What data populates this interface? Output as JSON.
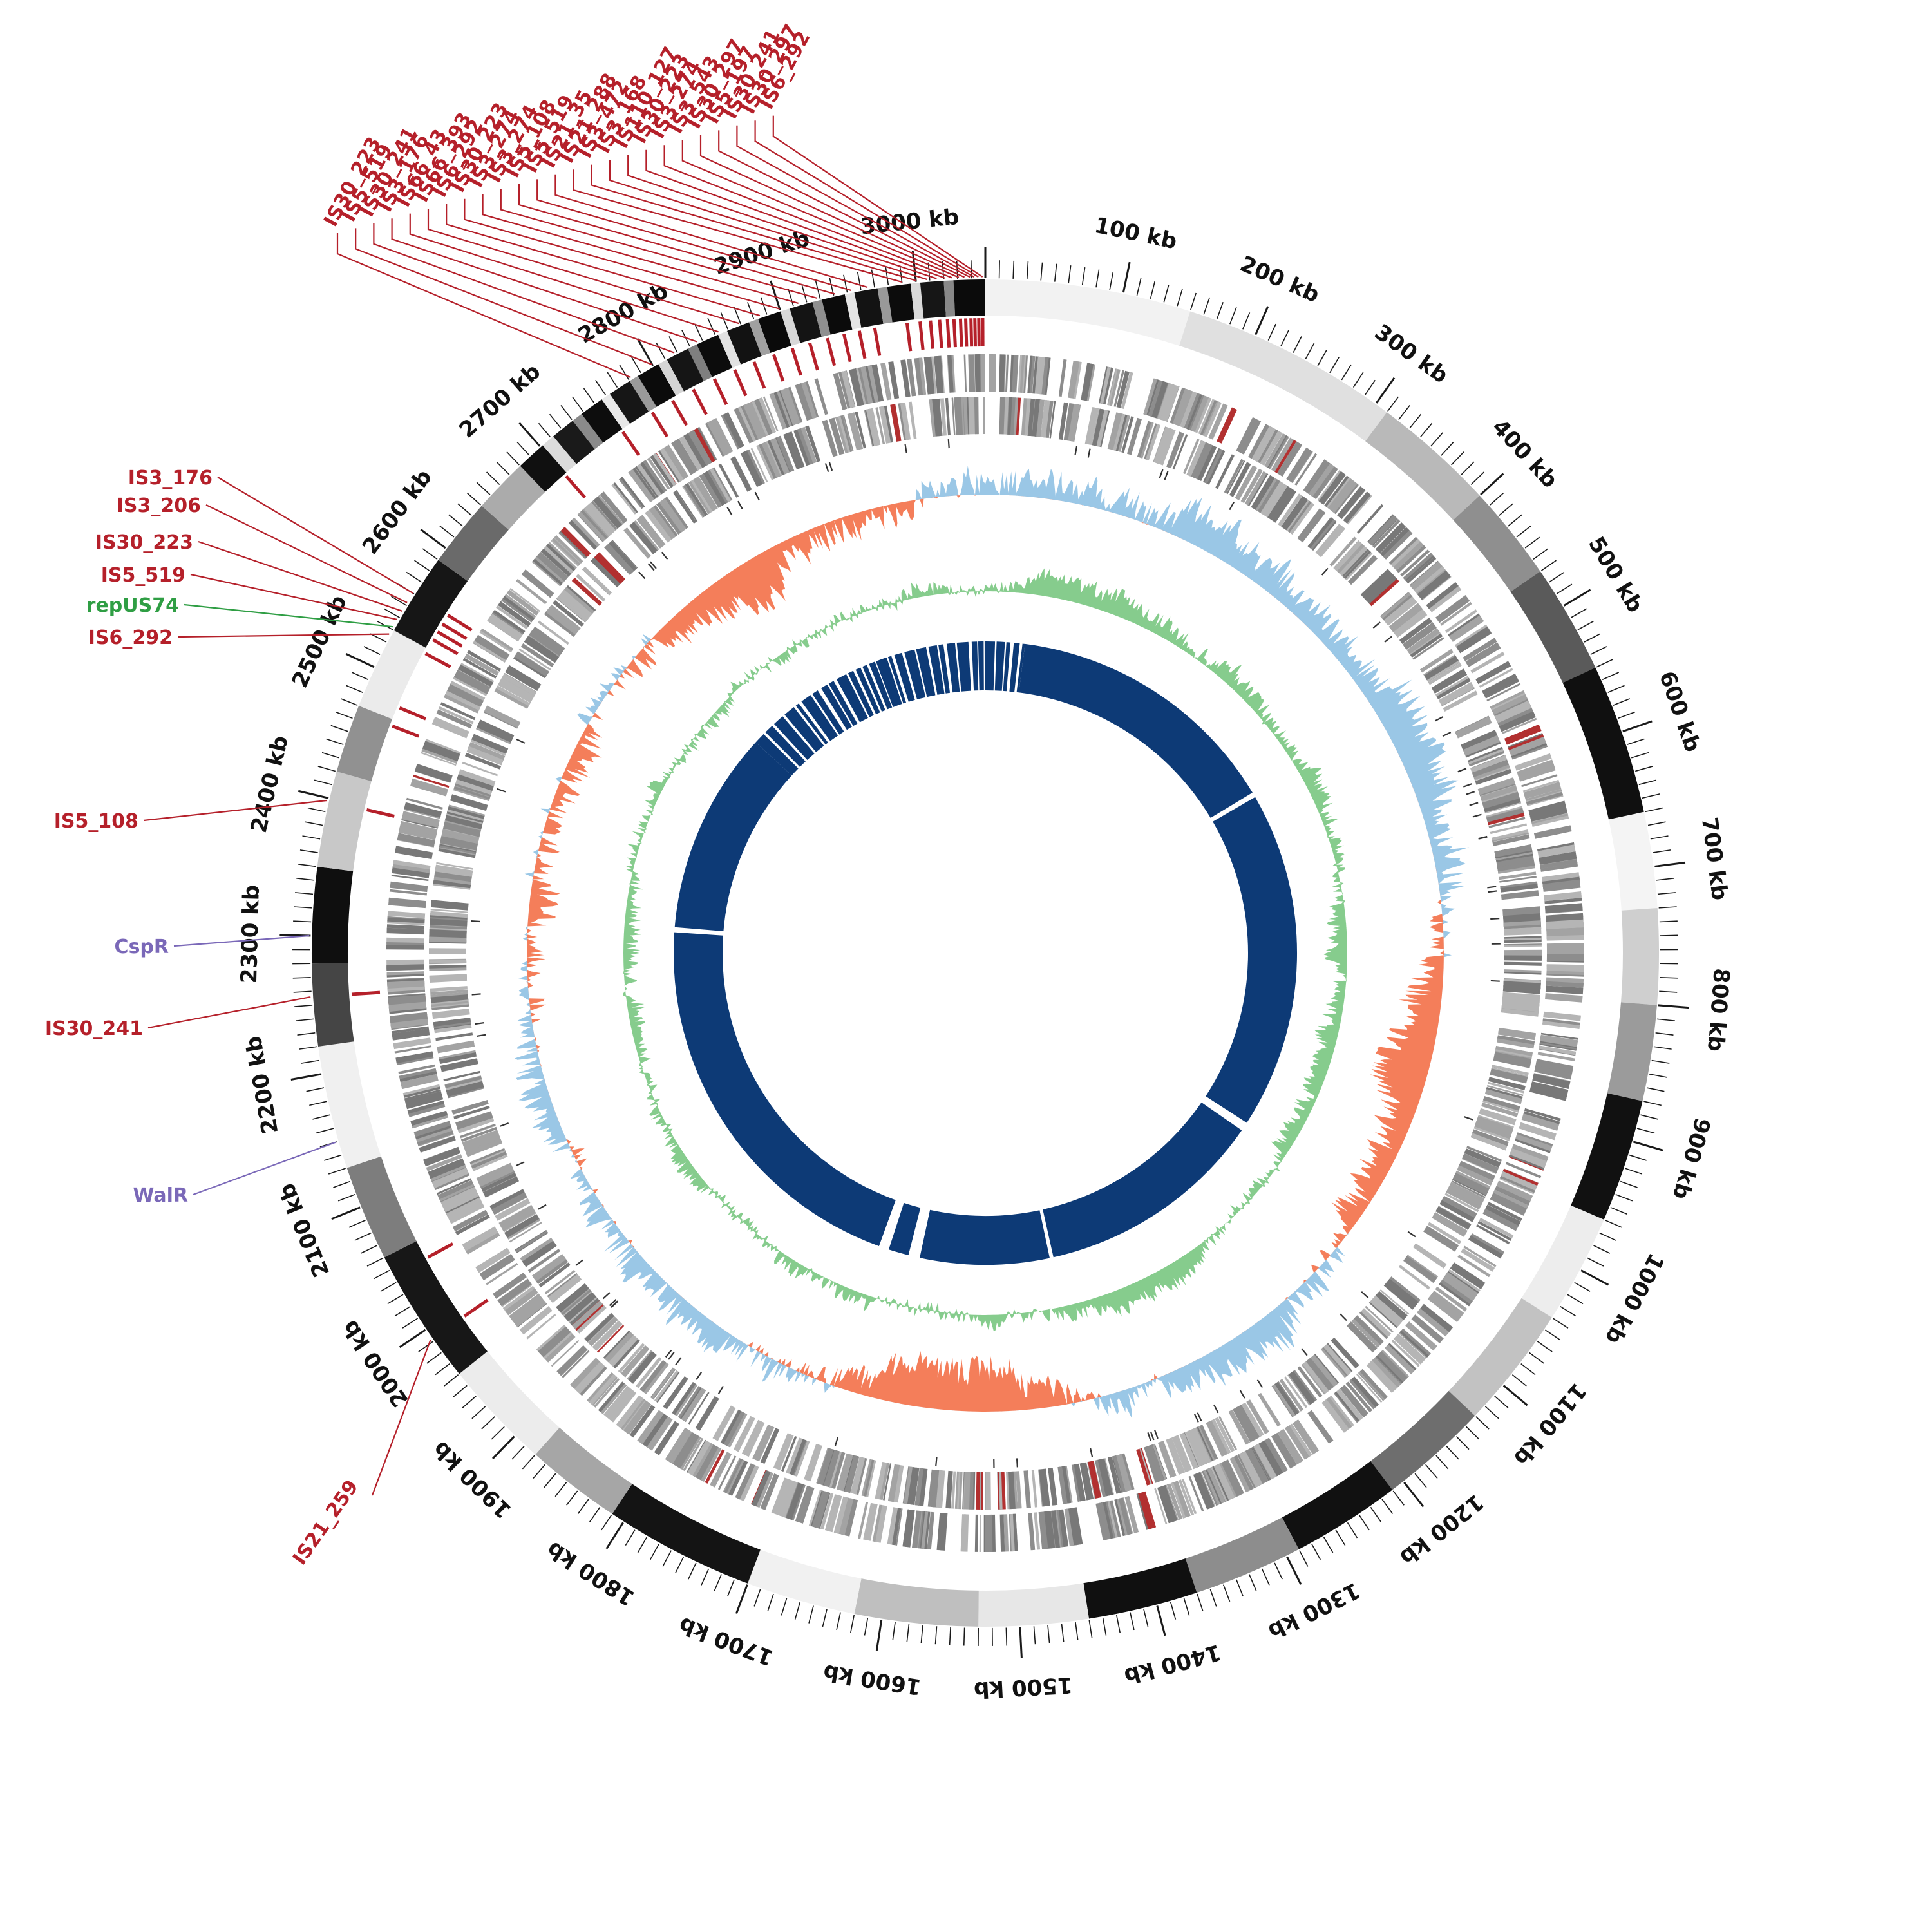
{
  "figure": {
    "background": "#ffffff",
    "description": "Circular genome map (circos-style) with karyotype ring, IS element annotations, gene tracks, GC plots and core-genome inner ring"
  },
  "chart_data": {
    "type": "circos-genome-map",
    "genome_length_kb": 3050,
    "axis": {
      "label_interval_kb": 100,
      "minor_tick_kb": 10,
      "labels": [
        "100 kb",
        "200 kb",
        "300 kb",
        "400 kb",
        "500 kb",
        "600 kb",
        "700 kb",
        "800 kb",
        "900 kb",
        "1000 kb",
        "1100 kb",
        "1200 kb",
        "1300 kb",
        "1400 kb",
        "1500 kb",
        "1600 kb",
        "1700 kb",
        "1800 kb",
        "1900 kb",
        "2000 kb",
        "2100 kb",
        "2200 kb",
        "2300 kb",
        "2400 kb",
        "2500 kb",
        "2600 kb",
        "2700 kb",
        "2800 kb",
        "2900 kb",
        "3000 kb"
      ]
    },
    "colors": {
      "red": "#b5202a",
      "purple": "#7a68b8",
      "green": "#2f9e44",
      "navy": "#0d3a76",
      "gc_positive": "#9ac7e6",
      "gc_negative": "#f47e5a",
      "skew_green": "#86cc8d",
      "tick": "#1a1a1a",
      "label_text": "#111111"
    },
    "karyotype_segments": [
      [
        0,
        150,
        "#f2f2f2"
      ],
      [
        150,
        310,
        "#e0e0e0"
      ],
      [
        310,
        400,
        "#b9b9b9"
      ],
      [
        400,
        470,
        "#8f8f8f"
      ],
      [
        470,
        550,
        "#5a5a5a"
      ],
      [
        550,
        660,
        "#101010"
      ],
      [
        660,
        730,
        "#f4f4f4"
      ],
      [
        730,
        800,
        "#cfcfcf"
      ],
      [
        800,
        870,
        "#9b9b9b"
      ],
      [
        870,
        960,
        "#111111"
      ],
      [
        960,
        1040,
        "#ededed"
      ],
      [
        1040,
        1130,
        "#c2c2c2"
      ],
      [
        1130,
        1210,
        "#6e6e6e"
      ],
      [
        1210,
        1290,
        "#111111"
      ],
      [
        1290,
        1370,
        "#8d8d8d"
      ],
      [
        1370,
        1450,
        "#101010"
      ],
      [
        1450,
        1530,
        "#e7e7e7"
      ],
      [
        1530,
        1620,
        "#bfbfbf"
      ],
      [
        1620,
        1700,
        "#f1f1f1"
      ],
      [
        1700,
        1810,
        "#141414"
      ],
      [
        1810,
        1880,
        "#a6a6a6"
      ],
      [
        1880,
        1960,
        "#ececec"
      ],
      [
        1960,
        2060,
        "#171717"
      ],
      [
        2060,
        2130,
        "#7d7d7d"
      ],
      [
        2130,
        2220,
        "#f0f0f0"
      ],
      [
        2220,
        2280,
        "#454545"
      ],
      [
        2280,
        2350,
        "#0f0f0f"
      ],
      [
        2350,
        2420,
        "#c8c8c8"
      ],
      [
        2420,
        2470,
        "#919191"
      ],
      [
        2470,
        2530,
        "#ebebeb"
      ],
      [
        2530,
        2590,
        "#161616"
      ],
      [
        2590,
        2640,
        "#6a6a6a"
      ],
      [
        2640,
        2680,
        "#ababab"
      ],
      [
        2680,
        2702,
        "#101010"
      ],
      [
        2702,
        2712,
        "#dcdcdc"
      ],
      [
        2712,
        2730,
        "#1a1a1a"
      ],
      [
        2730,
        2738,
        "#8a8a8a"
      ],
      [
        2738,
        2756,
        "#0d0d0d"
      ],
      [
        2756,
        2763,
        "#e8e8e8"
      ],
      [
        2763,
        2780,
        "#161616"
      ],
      [
        2780,
        2787,
        "#9a9a9a"
      ],
      [
        2787,
        2804,
        "#0b0b0b"
      ],
      [
        2804,
        2811,
        "#d5d5d5"
      ],
      [
        2811,
        2828,
        "#151515"
      ],
      [
        2828,
        2835,
        "#7f7f7f"
      ],
      [
        2835,
        2852,
        "#0c0c0c"
      ],
      [
        2852,
        2859,
        "#e2e2e2"
      ],
      [
        2859,
        2876,
        "#121212"
      ],
      [
        2876,
        2883,
        "#a0a0a0"
      ],
      [
        2883,
        2900,
        "#0a0a0a"
      ],
      [
        2900,
        2907,
        "#d8d8d8"
      ],
      [
        2907,
        2924,
        "#141414"
      ],
      [
        2924,
        2931,
        "#8f8f8f"
      ],
      [
        2931,
        2948,
        "#0b0b0b"
      ],
      [
        2948,
        2955,
        "#e5e5e5"
      ],
      [
        2955,
        2972,
        "#131313"
      ],
      [
        2972,
        2979,
        "#999999"
      ],
      [
        2979,
        2996,
        "#0c0c0c"
      ],
      [
        2996,
        3003,
        "#dadada"
      ],
      [
        3003,
        3020,
        "#161616"
      ],
      [
        3020,
        3027,
        "#888888"
      ],
      [
        3027,
        3050,
        "#0b0b0b"
      ]
    ],
    "annotations": {
      "top": [
        {
          "label": "IS30_223",
          "kb": 2782
        },
        {
          "label": "IS5_519",
          "kb": 2800
        },
        {
          "label": "IS30_241",
          "kb": 2818
        },
        {
          "label": "IS3_176",
          "kb": 2836
        },
        {
          "label": "IS66_43",
          "kb": 2853
        },
        {
          "label": "IS66_393",
          "kb": 2869
        },
        {
          "label": "IS6_292",
          "kb": 2885
        },
        {
          "label": "IS30_223",
          "kb": 2900
        },
        {
          "label": "IS3_274",
          "kb": 2914
        },
        {
          "label": "IS3_274",
          "kb": 2928
        },
        {
          "label": "IS5_108",
          "kb": 2941
        },
        {
          "label": "IS5_519",
          "kb": 2953
        },
        {
          "label": "IS21_35",
          "kb": 2965
        },
        {
          "label": "IS21_288",
          "kb": 2990
        },
        {
          "label": "IS3_472",
          "kb": 3000
        },
        {
          "label": "IS3_168",
          "kb": 3008
        },
        {
          "label": "IS110_127",
          "kb": 3015
        },
        {
          "label": "IS30_223",
          "kb": 3021
        },
        {
          "label": "IS3_274",
          "kb": 3026
        },
        {
          "label": "IS3_543",
          "kb": 3031
        },
        {
          "label": "IS30_297",
          "kb": 3035
        },
        {
          "label": "IS5_197",
          "kb": 3039
        },
        {
          "label": "IS30_241",
          "kb": 3042
        },
        {
          "label": "IS30_297",
          "kb": 3045
        },
        {
          "label": "IS6_292",
          "kb": 3048
        }
      ],
      "left": [
        {
          "label": "IS3_176",
          "kb": 2560,
          "color": "red"
        },
        {
          "label": "IS3_206",
          "kb": 2552,
          "color": "red"
        },
        {
          "label": "IS30_223",
          "kb": 2545,
          "color": "red"
        },
        {
          "label": "IS5_519",
          "kb": 2538,
          "color": "red"
        },
        {
          "label": "repUS74",
          "kb": 2532,
          "color": "green"
        },
        {
          "label": "IS6_292",
          "kb": 2526,
          "color": "red"
        },
        {
          "label": "IS5_108",
          "kb": 2398,
          "color": "red"
        },
        {
          "label": "CspR",
          "kb": 2300,
          "color": "purple"
        },
        {
          "label": "IS30_241",
          "kb": 2256,
          "color": "red"
        },
        {
          "label": "WalR",
          "kb": 2150,
          "color": "purple"
        },
        {
          "label": "IS21_259",
          "kb": 1992,
          "color": "red"
        }
      ],
      "extra_red_ticks_kb": [
        2045,
        2465,
        2480,
        2700,
        2755
      ]
    },
    "tracks": {
      "tiles_outer": {
        "seed": 11,
        "count": 920,
        "color_options": [
          "#8d8d8d",
          "#a3a3a3",
          "#787878",
          "#b5b5b5"
        ],
        "rare_color": "#b23030"
      },
      "tiles_inner": {
        "seed": 29,
        "count": 880,
        "color_options": [
          "#8d8d8d",
          "#a3a3a3",
          "#787878",
          "#b5b5b5"
        ],
        "rare_color": "#b23030"
      },
      "speckle": {
        "seed": 57,
        "count": 70,
        "color": "#333333"
      },
      "gc": {
        "seed": 5,
        "bias": [
          [
            0,
            0.55
          ],
          [
            250,
            0.6
          ],
          [
            500,
            0.35
          ],
          [
            700,
            -0.2
          ],
          [
            900,
            -0.65
          ],
          [
            1050,
            -0.3
          ],
          [
            1200,
            0.45
          ],
          [
            1350,
            0.2
          ],
          [
            1500,
            -0.55
          ],
          [
            1650,
            -0.35
          ],
          [
            1800,
            0.35
          ],
          [
            2000,
            0.45
          ],
          [
            2200,
            0.15
          ],
          [
            2350,
            -0.5
          ],
          [
            2500,
            -0.7
          ],
          [
            2650,
            -0.25
          ],
          [
            2800,
            -0.45
          ],
          [
            2950,
            0.1
          ],
          [
            3050,
            0.55
          ]
        ]
      },
      "skew": {
        "seed": 9,
        "bias": [
          [
            0,
            0.15
          ],
          [
            400,
            0.25
          ],
          [
            800,
            -0.1
          ],
          [
            1200,
            0.2
          ],
          [
            1600,
            -0.15
          ],
          [
            2000,
            0.25
          ],
          [
            2400,
            -0.12
          ],
          [
            2800,
            0.12
          ],
          [
            3050,
            0.15
          ]
        ]
      },
      "inner_ring": {
        "solid": [
          [
            62,
            500
          ],
          [
            508,
            1042
          ],
          [
            1056,
            1418
          ],
          [
            1424,
            1628
          ],
          [
            1646,
            1678
          ],
          [
            1694,
            2320
          ],
          [
            2328,
            2648
          ]
        ],
        "barcode": [
          {
            "start": 2648,
            "end": 3050,
            "seed": 41
          },
          {
            "start": 0,
            "end": 62,
            "seed": 17
          }
        ]
      }
    }
  }
}
